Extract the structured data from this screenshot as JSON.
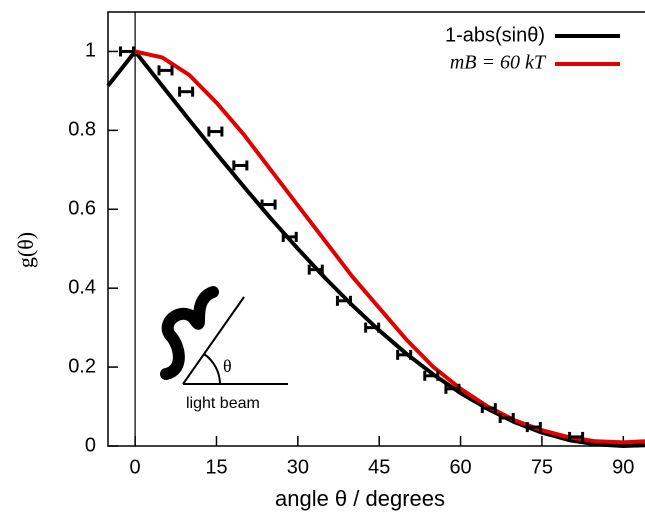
{
  "chart_data": {
    "type": "line",
    "xlabel": "angle θ / degrees",
    "ylabel": "g(θ)",
    "xlim": [
      -5,
      94
    ],
    "ylim": [
      0,
      1.1
    ],
    "xticks": [
      0,
      15,
      30,
      45,
      60,
      75,
      90
    ],
    "yticks": [
      0,
      0.2,
      0.4,
      0.6,
      0.8,
      1
    ],
    "legend": "top-right",
    "series": [
      {
        "name": "1-abs(sinθ)",
        "color": "#000000",
        "x": [
          -5,
          0,
          5,
          10,
          15,
          20,
          25,
          30,
          35,
          40,
          45,
          50,
          55,
          60,
          65,
          70,
          75,
          80,
          85,
          90,
          94
        ],
        "values": [
          0.913,
          1,
          0.913,
          0.826,
          0.741,
          0.658,
          0.577,
          0.5,
          0.426,
          0.357,
          0.293,
          0.234,
          0.181,
          0.134,
          0.094,
          0.06,
          0.034,
          0.015,
          0.004,
          0,
          0.002
        ]
      },
      {
        "name": "mB = 60 kT",
        "color": "#e00000",
        "x": [
          0,
          5,
          10,
          15,
          20,
          25,
          30,
          35,
          40,
          45,
          50,
          55,
          60,
          65,
          70,
          75,
          80,
          85,
          90,
          94
        ],
        "values": [
          1,
          0.985,
          0.94,
          0.87,
          0.79,
          0.7,
          0.61,
          0.52,
          0.43,
          0.35,
          0.27,
          0.2,
          0.145,
          0.1,
          0.065,
          0.04,
          0.022,
          0.012,
          0.009,
          0.012
        ]
      }
    ],
    "points": {
      "color": "#000000",
      "x": [
        -1.5,
        5.6,
        9.4,
        14.8,
        19.4,
        24.6,
        28.5,
        33.3,
        38.5,
        43.7,
        49.6,
        54.6,
        58.5,
        65.2,
        68.5,
        73.5,
        81.3
      ],
      "values": [
        1,
        0.952,
        0.898,
        0.797,
        0.711,
        0.612,
        0.53,
        0.447,
        0.368,
        0.3,
        0.231,
        0.178,
        0.145,
        0.096,
        0.071,
        0.048,
        0.023
      ],
      "xerr": [
        1.2,
        1.2,
        1.2,
        1.2,
        1.2,
        1.2,
        1.2,
        1.2,
        1.2,
        1.2,
        1.2,
        1.2,
        1.2,
        1.2,
        1.2,
        1.2,
        1.2
      ]
    },
    "inset": {
      "angle_label": "θ",
      "beam_label": "light beam"
    }
  }
}
